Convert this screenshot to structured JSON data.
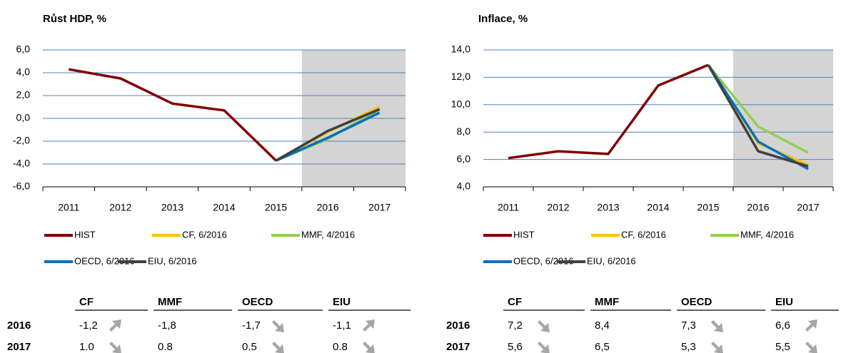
{
  "chart_data": [
    {
      "type": "line",
      "title": "Růst HDP, %",
      "categories": [
        "2011",
        "2012",
        "2013",
        "2014",
        "2015",
        "2016",
        "2017"
      ],
      "series": [
        {
          "name": "HIST",
          "color": "#7f0000",
          "values": [
            4.3,
            3.5,
            1.3,
            0.7,
            -3.7,
            null,
            null
          ]
        },
        {
          "name": "CF, 6/2016",
          "color": "#ffc000",
          "values": [
            null,
            null,
            null,
            null,
            -3.7,
            -1.2,
            1.0
          ]
        },
        {
          "name": "MMF, 4/2016",
          "color": "#92d050",
          "values": [
            null,
            null,
            null,
            null,
            -3.7,
            -1.8,
            0.8
          ]
        },
        {
          "name": "OECD, 6/2016",
          "color": "#0070c0",
          "values": [
            null,
            null,
            null,
            null,
            -3.7,
            -1.7,
            0.5
          ]
        },
        {
          "name": "EIU, 6/2016",
          "color": "#404040",
          "values": [
            null,
            null,
            null,
            null,
            -3.7,
            -1.1,
            0.8
          ]
        }
      ],
      "ylim": [
        -6,
        6
      ],
      "yticks": [
        {
          "value": -6,
          "label": "-6,0"
        },
        {
          "value": -4,
          "label": "-4,0"
        },
        {
          "value": -2,
          "label": "-2,0"
        },
        {
          "value": 0,
          "label": "0,0"
        },
        {
          "value": 2,
          "label": "2,0"
        },
        {
          "value": 4,
          "label": "4,0"
        },
        {
          "value": 6,
          "label": "6,0"
        }
      ],
      "grid": true,
      "table": {
        "columns": [
          "CF",
          "MMF",
          "OECD",
          "EIU"
        ],
        "rows": [
          {
            "label": "2016",
            "cells": [
              "-1,2",
              "-1,8",
              "-1,7",
              "-1,1"
            ],
            "trend": [
              "up",
              null,
              "down",
              "up"
            ]
          },
          {
            "label": "2017",
            "cells": [
              "1.0",
              "0.8",
              "0.5",
              "0.8"
            ],
            "trend": [
              "down",
              null,
              "down",
              "down"
            ]
          }
        ]
      }
    },
    {
      "type": "line",
      "title": "Inflace, %",
      "categories": [
        "2011",
        "2012",
        "2013",
        "2014",
        "2015",
        "2016",
        "2017"
      ],
      "series": [
        {
          "name": "HIST",
          "color": "#7f0000",
          "values": [
            6.1,
            6.6,
            6.4,
            11.4,
            12.9,
            null,
            null
          ]
        },
        {
          "name": "CF, 6/2016",
          "color": "#ffc000",
          "values": [
            null,
            null,
            null,
            null,
            12.9,
            7.2,
            5.6
          ]
        },
        {
          "name": "MMF, 4/2016",
          "color": "#92d050",
          "values": [
            null,
            null,
            null,
            null,
            12.9,
            8.4,
            6.5
          ]
        },
        {
          "name": "OECD, 6/2016",
          "color": "#0070c0",
          "values": [
            null,
            null,
            null,
            null,
            12.9,
            7.3,
            5.3
          ]
        },
        {
          "name": "EIU, 6/2016",
          "color": "#404040",
          "values": [
            null,
            null,
            null,
            null,
            12.9,
            6.6,
            5.5
          ]
        }
      ],
      "ylim": [
        4,
        14
      ],
      "yticks": [
        {
          "value": 4,
          "label": "4,0"
        },
        {
          "value": 6,
          "label": "6,0"
        },
        {
          "value": 8,
          "label": "8,0"
        },
        {
          "value": 10,
          "label": "10,0"
        },
        {
          "value": 12,
          "label": "12,0"
        },
        {
          "value": 14,
          "label": "14,0"
        }
      ],
      "grid": true,
      "table": {
        "columns": [
          "CF",
          "MMF",
          "OECD",
          "EIU"
        ],
        "rows": [
          {
            "label": "2016",
            "cells": [
              "7,2",
              "8,4",
              "7,3",
              "6,6"
            ],
            "trend": [
              "down",
              null,
              "down",
              "up"
            ]
          },
          {
            "label": "2017",
            "cells": [
              "5,6",
              "6,5",
              "5,3",
              "5,5"
            ],
            "trend": [
              "down",
              null,
              "down",
              "down"
            ]
          }
        ]
      }
    }
  ]
}
